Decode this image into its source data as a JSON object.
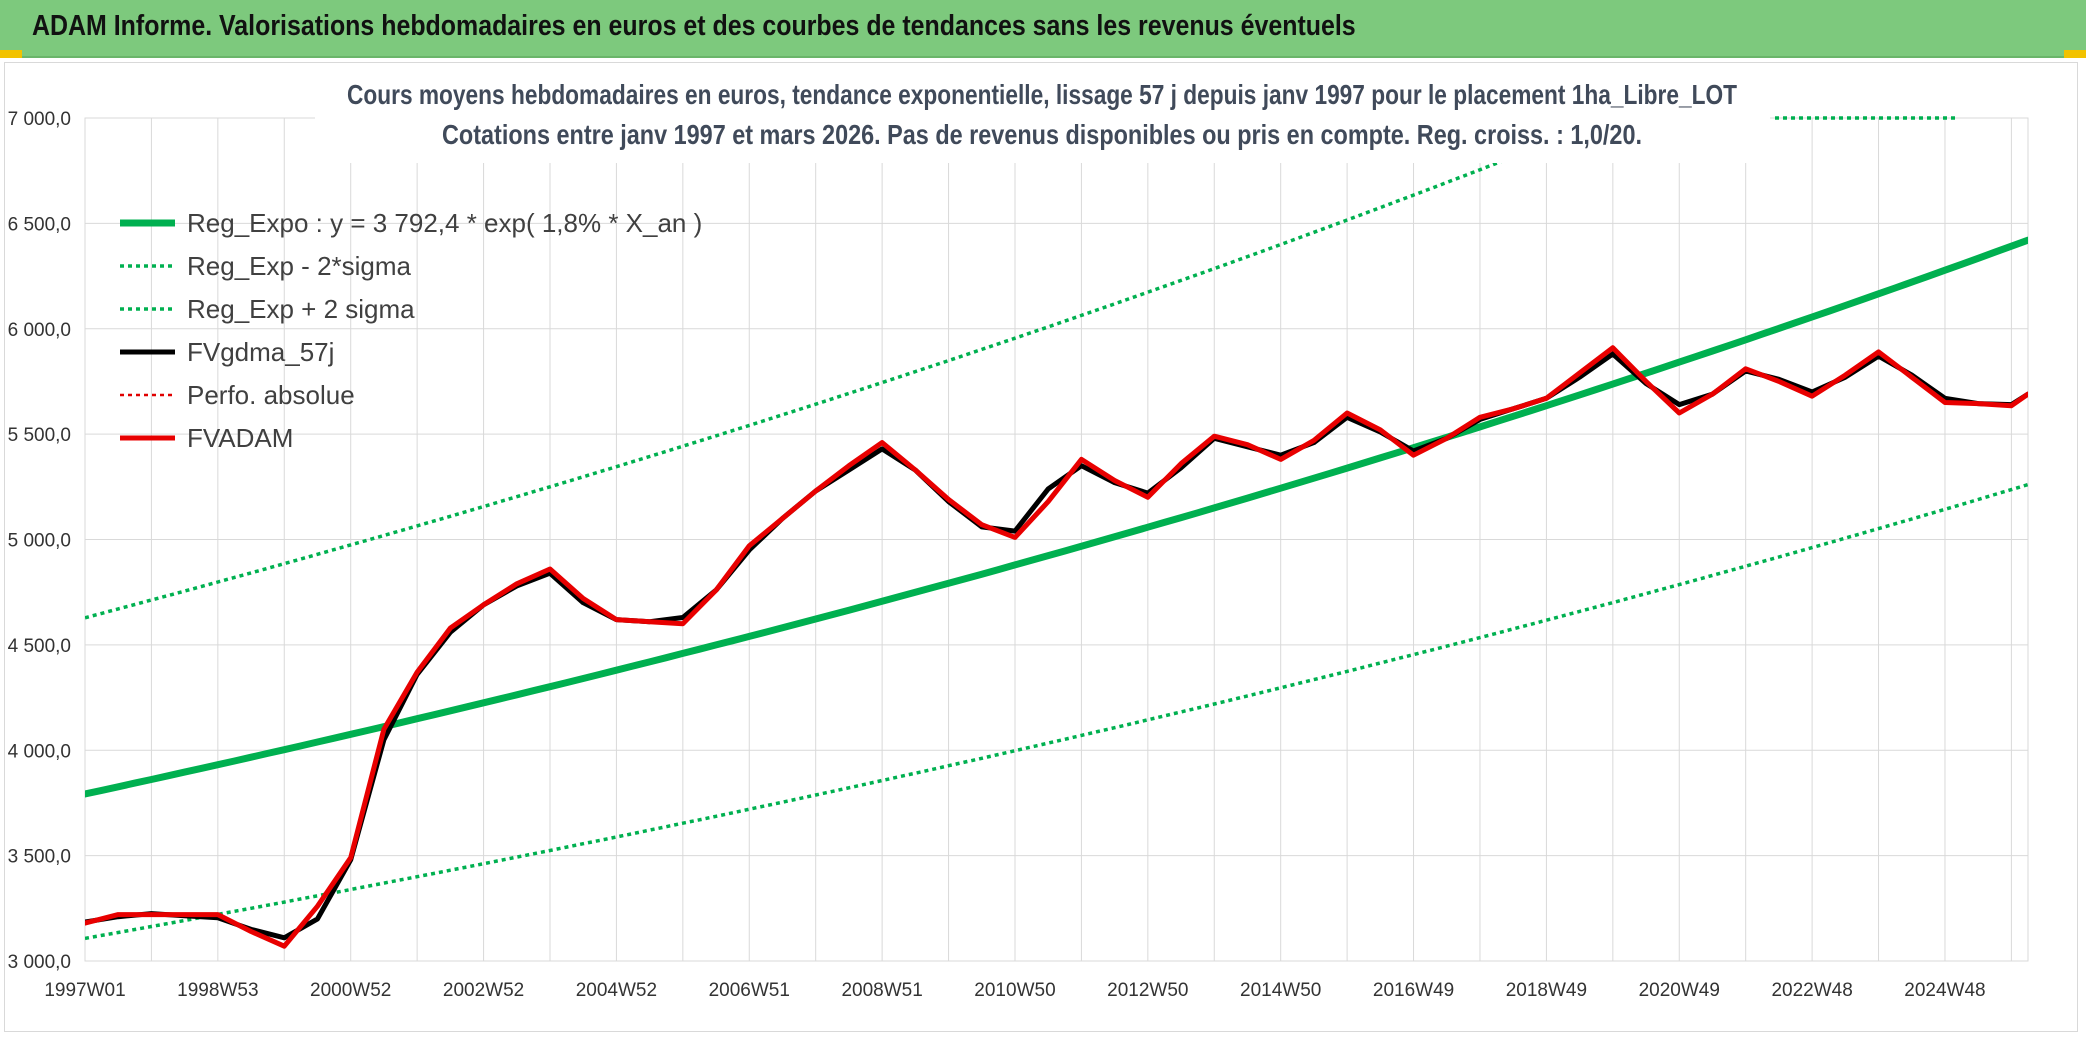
{
  "header": {
    "title": "ADAM Informe. Valorisations hebdomadaires en euros et des courbes de tendances sans les revenus éventuels"
  },
  "chart_data": {
    "type": "line",
    "title_line1": "Cours moyens hebdomadaires en euros, tendance exponentielle, lissage 57 j depuis janv 1997 pour le placement 1ha_Libre_LOT",
    "title_line2": "Cotations entre janv 1997 et mars 2026. Pas de revenus disponibles ou pris en compte. Reg. croiss. : 1,0/20.",
    "ylim": [
      3000,
      7000
    ],
    "ytick_values": [
      3000,
      3500,
      4000,
      4500,
      5000,
      5500,
      6000,
      6500,
      7000
    ],
    "ytick_labels": [
      "3 000,0",
      "3 500,0",
      "4 000,0",
      "4 500,0",
      "5 000,0",
      "5 500,0",
      "6 000,0",
      "6 500,0",
      "7 000,0"
    ],
    "xlim": [
      1997.0,
      2026.25
    ],
    "xtick_values": [
      1997.0,
      1999.0,
      2001.0,
      2003.0,
      2005.0,
      2007.0,
      2009.0,
      2011.0,
      2013.0,
      2015.0,
      2017.0,
      2019.0,
      2021.0,
      2023.0,
      2025.0
    ],
    "xtick_labels": [
      "1997W01",
      "1998W53",
      "2000W52",
      "2002W52",
      "2004W52",
      "2006W51",
      "2008W51",
      "2010W50",
      "2012W50",
      "2014W50",
      "2016W49",
      "2018W49",
      "2020W49",
      "2022W48",
      "2024W48"
    ],
    "xgrid_values": [
      1997.0,
      1998.0,
      1999.0,
      2000.0,
      2001.0,
      2002.0,
      2003.0,
      2004.0,
      2005.0,
      2006.0,
      2007.0,
      2008.0,
      2009.0,
      2010.0,
      2011.0,
      2012.0,
      2013.0,
      2014.0,
      2015.0,
      2016.0,
      2017.0,
      2018.0,
      2019.0,
      2020.0,
      2021.0,
      2022.0,
      2023.0,
      2024.0,
      2025.0,
      2026.0
    ],
    "regression": {
      "base": 3792.4,
      "rate": 0.018,
      "sigma_factor": 1.2205
    },
    "series": [
      {
        "name": "Reg_Expo : y = 3 792,4 * exp( 1,8% *  X_an )",
        "color": "#00b050",
        "style": "solid",
        "width": 7,
        "kind": "reg"
      },
      {
        "name": "Reg_Exp - 2*sigma",
        "color": "#00b050",
        "style": "dotted",
        "width": 3.5,
        "kind": "reg_low"
      },
      {
        "name": "Reg_Exp + 2 sigma",
        "color": "#00b050",
        "style": "dotted",
        "width": 3.5,
        "kind": "reg_high"
      },
      {
        "name": "FVgdma_57j",
        "color": "#000000",
        "style": "solid",
        "width": 5,
        "kind": "smooth",
        "x": [
          1997.0,
          1997.5,
          1998.0,
          1998.5,
          1999.0,
          1999.5,
          2000.0,
          2000.5,
          2001.0,
          2001.5,
          2002.0,
          2002.5,
          2003.0,
          2003.5,
          2004.0,
          2004.5,
          2005.0,
          2005.5,
          2006.0,
          2006.5,
          2007.0,
          2007.5,
          2008.0,
          2008.5,
          2009.0,
          2009.5,
          2010.0,
          2010.5,
          2011.0,
          2011.5,
          2012.0,
          2012.5,
          2013.0,
          2013.5,
          2014.0,
          2014.5,
          2015.0,
          2015.5,
          2016.0,
          2016.5,
          2017.0,
          2017.5,
          2018.0,
          2018.5,
          2019.0,
          2019.5,
          2020.0,
          2020.5,
          2021.0,
          2021.5,
          2022.0,
          2022.5,
          2023.0,
          2023.5,
          2024.0,
          2024.5,
          2025.0,
          2025.5,
          2026.0,
          2026.25
        ],
        "values": [
          3185,
          3210,
          3225,
          3215,
          3205,
          3150,
          3110,
          3200,
          3480,
          4050,
          4360,
          4560,
          4690,
          4780,
          4840,
          4700,
          4620,
          4610,
          4630,
          4760,
          4950,
          5100,
          5230,
          5330,
          5430,
          5330,
          5180,
          5060,
          5040,
          5240,
          5350,
          5270,
          5220,
          5340,
          5480,
          5440,
          5400,
          5460,
          5580,
          5510,
          5420,
          5480,
          5570,
          5620,
          5670,
          5770,
          5880,
          5740,
          5640,
          5690,
          5800,
          5760,
          5700,
          5770,
          5870,
          5780,
          5670,
          5645,
          5640,
          5690
        ]
      },
      {
        "name": "Perfo. absolue",
        "color": "#e00000",
        "style": "dotted",
        "width": 2.5,
        "kind": "perfo"
      },
      {
        "name": "FVADAM",
        "color": "#e80000",
        "style": "solid",
        "width": 5,
        "kind": "raw",
        "x": [
          1997.0,
          1997.5,
          1998.0,
          1998.5,
          1999.0,
          1999.5,
          2000.0,
          2000.5,
          2001.0,
          2001.5,
          2002.0,
          2002.5,
          2003.0,
          2003.5,
          2004.0,
          2004.5,
          2005.0,
          2005.5,
          2006.0,
          2006.5,
          2007.0,
          2007.5,
          2008.0,
          2008.5,
          2009.0,
          2009.5,
          2010.0,
          2010.5,
          2011.0,
          2011.5,
          2012.0,
          2012.5,
          2013.0,
          2013.5,
          2014.0,
          2014.5,
          2015.0,
          2015.5,
          2016.0,
          2016.5,
          2017.0,
          2017.5,
          2018.0,
          2018.5,
          2019.0,
          2019.5,
          2020.0,
          2020.5,
          2021.0,
          2021.5,
          2022.0,
          2022.5,
          2023.0,
          2023.5,
          2024.0,
          2024.5,
          2025.0,
          2025.5,
          2026.0,
          2026.25
        ],
        "values": [
          3180,
          3220,
          3220,
          3220,
          3220,
          3140,
          3070,
          3260,
          3490,
          4100,
          4370,
          4580,
          4690,
          4790,
          4860,
          4720,
          4620,
          4610,
          4600,
          4760,
          4970,
          5100,
          5230,
          5350,
          5460,
          5330,
          5190,
          5070,
          5010,
          5180,
          5380,
          5280,
          5200,
          5360,
          5490,
          5450,
          5380,
          5470,
          5600,
          5520,
          5400,
          5480,
          5580,
          5620,
          5670,
          5790,
          5910,
          5750,
          5600,
          5690,
          5810,
          5750,
          5680,
          5780,
          5890,
          5770,
          5650,
          5645,
          5635,
          5690
        ]
      }
    ]
  }
}
